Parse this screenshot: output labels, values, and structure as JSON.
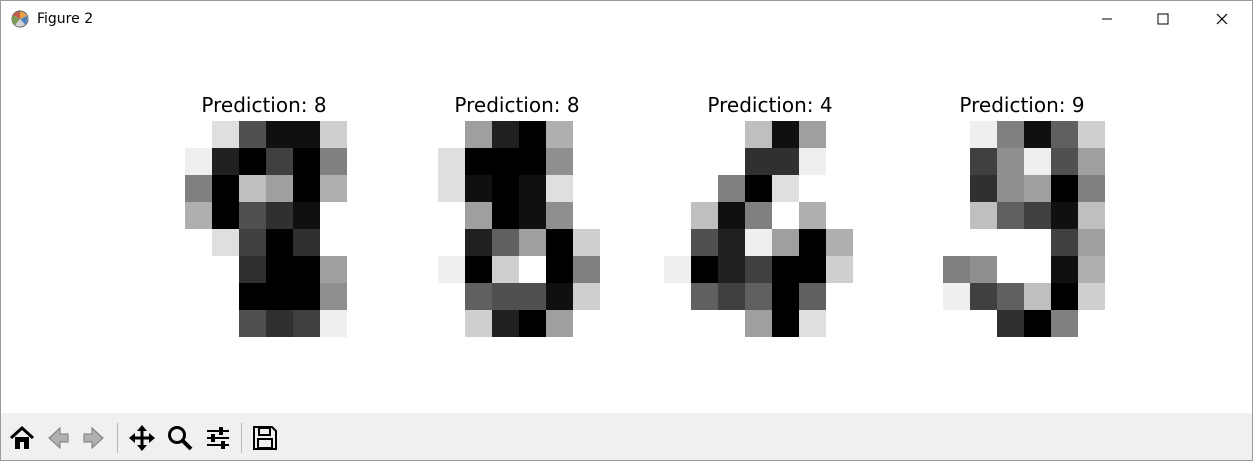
{
  "window": {
    "title": "Figure 2",
    "app_icon": "matplotlib-icon",
    "controls": [
      "minimize-icon",
      "maximize-icon",
      "close-icon"
    ]
  },
  "figure": {
    "panels": [
      {
        "title": "Prediction: 8",
        "pixels": [
          [
            0,
            0,
            2,
            11,
            15,
            15,
            3,
            0
          ],
          [
            0,
            1,
            14,
            16,
            12,
            16,
            8,
            0
          ],
          [
            0,
            8,
            16,
            4,
            6,
            16,
            5,
            0
          ],
          [
            0,
            5,
            16,
            11,
            13,
            15,
            0,
            0
          ],
          [
            0,
            0,
            2,
            12,
            16,
            13,
            0,
            0
          ],
          [
            0,
            0,
            0,
            13,
            16,
            16,
            6,
            0
          ],
          [
            0,
            0,
            0,
            16,
            16,
            16,
            7,
            0
          ],
          [
            0,
            0,
            0,
            11,
            13,
            12,
            1,
            0
          ]
        ]
      },
      {
        "title": "Prediction: 8",
        "pixels": [
          [
            0,
            0,
            6,
            14,
            16,
            5,
            0,
            0
          ],
          [
            0,
            2,
            16,
            16,
            16,
            7,
            0,
            0
          ],
          [
            0,
            2,
            15,
            16,
            15,
            2,
            0,
            0
          ],
          [
            0,
            0,
            6,
            16,
            15,
            7,
            0,
            0
          ],
          [
            0,
            0,
            14,
            10,
            6,
            16,
            3,
            0
          ],
          [
            0,
            1,
            16,
            3,
            0,
            16,
            8,
            0
          ],
          [
            0,
            0,
            10,
            11,
            11,
            15,
            3,
            0
          ],
          [
            0,
            0,
            3,
            14,
            16,
            6,
            0,
            0
          ]
        ]
      },
      {
        "title": "Prediction: 4",
        "pixels": [
          [
            0,
            0,
            0,
            4,
            15,
            6,
            0,
            0
          ],
          [
            0,
            0,
            0,
            13,
            13,
            1,
            0,
            0
          ],
          [
            0,
            0,
            8,
            16,
            2,
            0,
            0,
            0
          ],
          [
            0,
            4,
            15,
            8,
            0,
            5,
            0,
            0
          ],
          [
            0,
            11,
            14,
            1,
            6,
            16,
            5,
            0
          ],
          [
            1,
            16,
            14,
            12,
            16,
            16,
            3,
            0
          ],
          [
            0,
            10,
            12,
            10,
            16,
            10,
            0,
            0
          ],
          [
            0,
            0,
            0,
            6,
            16,
            2,
            0,
            0
          ]
        ]
      },
      {
        "title": "Prediction: 9",
        "pixels": [
          [
            0,
            0,
            1,
            8,
            15,
            10,
            3,
            0
          ],
          [
            0,
            0,
            12,
            7,
            1,
            11,
            6,
            0
          ],
          [
            0,
            0,
            13,
            7,
            6,
            16,
            8,
            0
          ],
          [
            0,
            0,
            4,
            10,
            12,
            15,
            4,
            0
          ],
          [
            0,
            0,
            0,
            0,
            0,
            12,
            6,
            0
          ],
          [
            0,
            8,
            7,
            0,
            0,
            15,
            5,
            0
          ],
          [
            0,
            1,
            12,
            10,
            4,
            16,
            3,
            0
          ],
          [
            0,
            0,
            0,
            13,
            16,
            8,
            0,
            0
          ]
        ]
      }
    ]
  },
  "toolbar": {
    "buttons": [
      "home-icon",
      "back-icon",
      "forward-icon",
      "pan-icon",
      "zoom-icon",
      "configure-subplots-icon",
      "save-icon"
    ]
  }
}
